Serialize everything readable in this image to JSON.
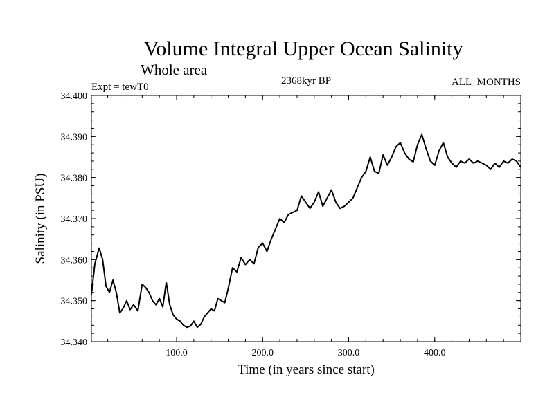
{
  "chart_data": {
    "type": "line",
    "title": "Volume Integral Upper Ocean Salinity",
    "subtitle": "Whole area",
    "experiment": "Expt = tewT0",
    "period": "2368kyr BP",
    "months": "ALL_MONTHS",
    "xlabel": "Time (in years since start)",
    "ylabel": "Salinity (in PSU)",
    "xlim": [
      1,
      500
    ],
    "ylim": [
      34.34,
      34.4
    ],
    "xticks": [
      {
        "v": 100,
        "label": "100.0"
      },
      {
        "v": 200,
        "label": "200.0"
      },
      {
        "v": 300,
        "label": "300.0"
      },
      {
        "v": 400,
        "label": "400.0"
      }
    ],
    "yticks": [
      {
        "v": 34.34,
        "label": "34.340"
      },
      {
        "v": 34.35,
        "label": "34.350"
      },
      {
        "v": 34.36,
        "label": "34.360"
      },
      {
        "v": 34.37,
        "label": "34.370"
      },
      {
        "v": 34.38,
        "label": "34.380"
      },
      {
        "v": 34.39,
        "label": "34.390"
      },
      {
        "v": 34.4,
        "label": "34.400"
      }
    ],
    "grid": false,
    "series": [
      {
        "name": "salinity",
        "x": [
          1,
          5,
          10,
          14,
          18,
          22,
          26,
          30,
          34,
          38,
          42,
          46,
          50,
          55,
          60,
          64,
          68,
          72,
          76,
          80,
          84,
          88,
          92,
          96,
          100,
          104,
          108,
          112,
          116,
          120,
          124,
          128,
          132,
          136,
          140,
          144,
          148,
          152,
          156,
          160,
          165,
          170,
          175,
          180,
          185,
          190,
          195,
          200,
          205,
          210,
          215,
          220,
          225,
          230,
          235,
          240,
          245,
          250,
          255,
          260,
          265,
          270,
          275,
          280,
          285,
          290,
          295,
          300,
          305,
          310,
          315,
          320,
          325,
          330,
          335,
          340,
          345,
          350,
          355,
          360,
          365,
          370,
          375,
          380,
          385,
          390,
          395,
          400,
          405,
          410,
          415,
          420,
          425,
          430,
          435,
          440,
          445,
          450,
          455,
          460,
          465,
          470,
          475,
          480,
          485,
          490,
          495,
          500
        ],
        "y": [
          34.3515,
          34.359,
          34.3628,
          34.36,
          34.3535,
          34.352,
          34.355,
          34.352,
          34.347,
          34.3482,
          34.35,
          34.3478,
          34.349,
          34.3475,
          34.354,
          34.3532,
          34.352,
          34.35,
          34.349,
          34.3505,
          34.3485,
          34.3545,
          34.349,
          34.3465,
          34.3455,
          34.345,
          34.344,
          34.3435,
          34.3438,
          34.345,
          34.3435,
          34.3442,
          34.346,
          34.347,
          34.348,
          34.3475,
          34.3505,
          34.35,
          34.3495,
          34.353,
          34.358,
          34.357,
          34.3605,
          34.3588,
          34.36,
          34.359,
          34.363,
          34.364,
          34.362,
          34.365,
          34.3675,
          34.37,
          34.369,
          34.371,
          34.3715,
          34.372,
          34.3755,
          34.374,
          34.3725,
          34.374,
          34.3765,
          34.373,
          34.375,
          34.377,
          34.374,
          34.3725,
          34.373,
          34.374,
          34.375,
          34.3775,
          34.38,
          34.3815,
          34.385,
          34.3815,
          34.381,
          34.3855,
          34.383,
          34.385,
          34.3875,
          34.3885,
          34.386,
          34.3845,
          34.3838,
          34.388,
          34.3905,
          34.387,
          34.384,
          34.383,
          34.3865,
          34.3885,
          34.385,
          34.3835,
          34.3825,
          34.384,
          34.3835,
          34.3845,
          34.3835,
          34.384,
          34.3835,
          34.383,
          34.382,
          34.3835,
          34.3825,
          34.384,
          34.3835,
          34.3845,
          34.384,
          34.3825
        ]
      }
    ]
  }
}
